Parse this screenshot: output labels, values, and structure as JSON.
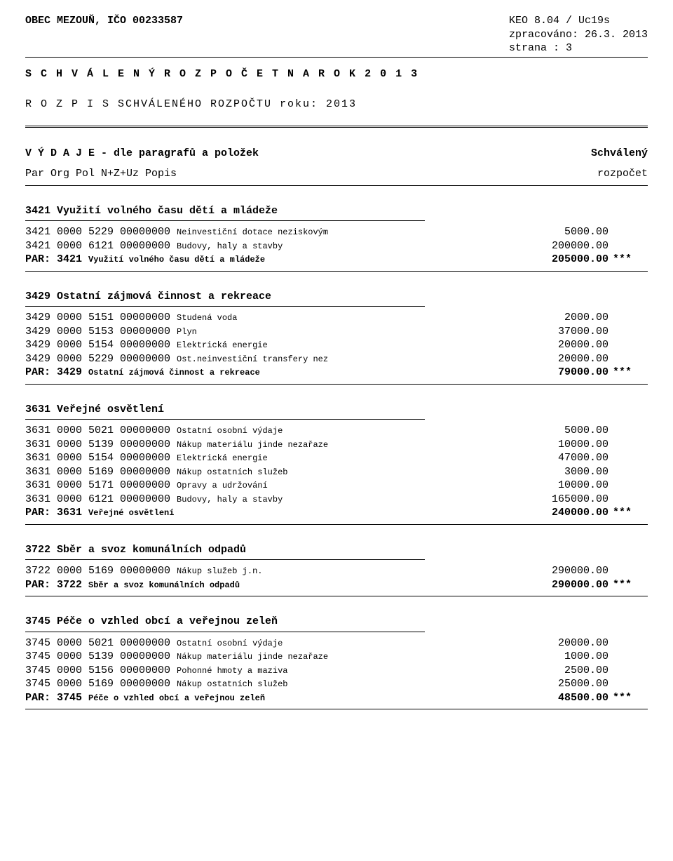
{
  "header": {
    "org_name": "OBEC MEZOUŇ, IČO 00233587",
    "sys": "KEO 8.04  / Uc19s",
    "processed": "zpracováno: 26.3. 2013",
    "page": "strana  :       3"
  },
  "title": "S C H V Á L E N Ý    R O Z P O Č E T    N A    R O K    2 0 1 3",
  "subtitle": "R O Z P I S   SCHVÁLENÉHO ROZPOČTU   roku:  2013",
  "col_header": {
    "left": "V Ý D A J E - dle paragrafů a položek",
    "right_top": "Schválený",
    "left2": "Par  Org  Pol  N+Z+Uz  Popis",
    "right_bottom": "rozpočet"
  },
  "sections": [
    {
      "code": "3421",
      "title": "3421 Využití volného času dětí a mládeže",
      "rows": [
        {
          "left": "3421 0000 5229 00000000 ",
          "desc": "Neinvestiční dotace neziskovým",
          "amount": "5000.00"
        },
        {
          "left": "3421 0000 6121 00000000 ",
          "desc": "Budovy, haly a stavby",
          "amount": "200000.00"
        }
      ],
      "total": {
        "left": "PAR: 3421 ",
        "desc": "Využití volného času dětí a mládeže",
        "amount": "205000.00"
      }
    },
    {
      "code": "3429",
      "title": "3429 Ostatní zájmová činnost a rekreace",
      "rows": [
        {
          "left": "3429 0000 5151 00000000 ",
          "desc": "Studená voda",
          "amount": "2000.00"
        },
        {
          "left": "3429 0000 5153 00000000 ",
          "desc": "Plyn",
          "amount": "37000.00"
        },
        {
          "left": "3429 0000 5154 00000000 ",
          "desc": "Elektrická energie",
          "amount": "20000.00"
        },
        {
          "left": "3429 0000 5229 00000000 ",
          "desc": "Ost.neinvestiční transfery nez",
          "amount": "20000.00"
        }
      ],
      "total": {
        "left": "PAR: 3429 ",
        "desc": "Ostatní zájmová činnost a rekreace",
        "amount": "79000.00"
      }
    },
    {
      "code": "3631",
      "title": "3631 Veřejné osvětlení",
      "rows": [
        {
          "left": "3631 0000 5021 00000000 ",
          "desc": "Ostatní osobní výdaje",
          "amount": "5000.00"
        },
        {
          "left": "3631 0000 5139 00000000 ",
          "desc": "Nákup materiálu jinde nezařaze",
          "amount": "10000.00"
        },
        {
          "left": "3631 0000 5154 00000000 ",
          "desc": "Elektrická energie",
          "amount": "47000.00"
        },
        {
          "left": "3631 0000 5169 00000000 ",
          "desc": "Nákup ostatních služeb",
          "amount": "3000.00"
        },
        {
          "left": "3631 0000 5171 00000000 ",
          "desc": "Opravy a udržování",
          "amount": "10000.00"
        },
        {
          "left": "3631 0000 6121 00000000 ",
          "desc": "Budovy, haly a stavby",
          "amount": "165000.00"
        }
      ],
      "total": {
        "left": "PAR: 3631 ",
        "desc": "Veřejné osvětlení",
        "amount": "240000.00"
      }
    },
    {
      "code": "3722",
      "title": "3722 Sběr a svoz komunálních odpadů",
      "rows": [
        {
          "left": "3722 0000 5169 00000000 ",
          "desc": "Nákup služeb j.n.",
          "amount": "290000.00"
        }
      ],
      "total": {
        "left": "PAR: 3722 ",
        "desc": "Sběr a svoz komunálních odpadů",
        "amount": "290000.00"
      }
    },
    {
      "code": "3745",
      "title": "3745 Péče o vzhled obcí a veřejnou zeleň",
      "rows": [
        {
          "left": "3745 0000 5021 00000000 ",
          "desc": "Ostatní osobní výdaje",
          "amount": "20000.00"
        },
        {
          "left": "3745 0000 5139 00000000 ",
          "desc": "Nákup materiálu jinde nezařaze",
          "amount": "1000.00"
        },
        {
          "left": "3745 0000 5156 00000000 ",
          "desc": "Pohonné hmoty a maziva",
          "amount": "2500.00"
        },
        {
          "left": "3745 0000 5169 00000000 ",
          "desc": "Nákup ostatních služeb",
          "amount": "25000.00"
        }
      ],
      "total": {
        "left": "PAR: 3745 ",
        "desc": "Péče o vzhled obcí a veřejnou zeleň",
        "amount": "48500.00"
      }
    }
  ],
  "stars": "***"
}
